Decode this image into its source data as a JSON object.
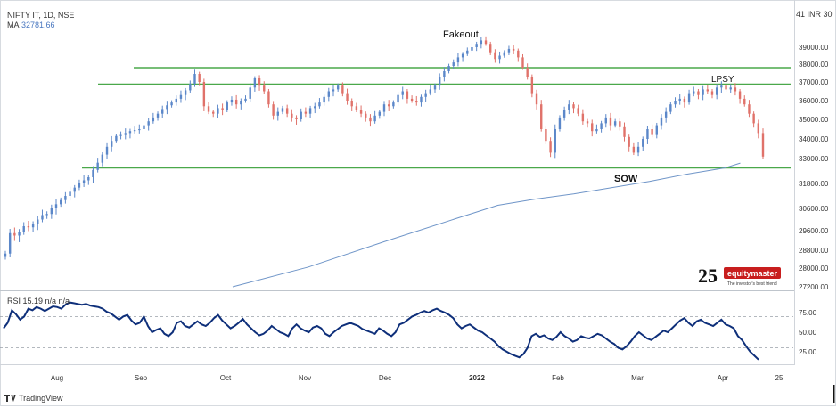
{
  "header": {
    "symbol_line": "NIFTY IT, 1D, NSE",
    "ma_label": "MA",
    "ma_value": "32781.66",
    "currency": "41 INR 30"
  },
  "annotations": {
    "fakeout": "Fakeout",
    "lpsy": "LPSY",
    "sow": "SOW"
  },
  "brand": {
    "years": "25",
    "name": "equitymaster",
    "tagline": "The investor's best friend"
  },
  "footer": {
    "tradingview": "TradingView"
  },
  "colors": {
    "up": "#5b87c9",
    "down": "#e0726a",
    "ma": "#6f95c8",
    "level": "#4aa84a",
    "rsi": "#0e2f7a",
    "brand": "#c81e1e"
  },
  "chart_data": [
    {
      "type": "candlestick",
      "title": "NIFTY IT, 1D, NSE",
      "x_ticks": [
        "Aug",
        "Sep",
        "Oct",
        "Nov",
        "Dec",
        "2022",
        "Feb",
        "Mar",
        "Apr",
        "25"
      ],
      "y_ticks": [
        39000,
        38000,
        37000,
        36000,
        35000,
        34000,
        33000,
        31800,
        30600,
        29600,
        28800,
        28000,
        27200
      ],
      "y_tick_labels": [
        "39000.00",
        "38000.00",
        "37000.00",
        "36000.00",
        "35000.00",
        "34000.00",
        "33000.00",
        "31800.00",
        "30600.00",
        "29600.00",
        "28800.00",
        "28000.00",
        "27200.00"
      ],
      "ylim": [
        27200,
        41000
      ],
      "horizontal_levels": [
        37800,
        36880,
        32550
      ],
      "close": [
        28650,
        29500,
        29400,
        29550,
        29800,
        29750,
        29900,
        30100,
        30300,
        30350,
        30600,
        30800,
        31000,
        31200,
        31400,
        31600,
        31800,
        31950,
        32100,
        32450,
        32800,
        33200,
        33600,
        33900,
        34150,
        34200,
        34300,
        34400,
        34450,
        34500,
        34700,
        34900,
        35100,
        35300,
        35550,
        35750,
        35900,
        36100,
        36300,
        36550,
        36900,
        37450,
        37000,
        35700,
        35400,
        35300,
        35600,
        35500,
        35900,
        36050,
        35800,
        36000,
        36100,
        36700,
        37200,
        36800,
        36500,
        35800,
        35200,
        35400,
        35600,
        35300,
        35100,
        35000,
        35400,
        35300,
        35600,
        35700,
        35900,
        36200,
        36500,
        36600,
        36800,
        36400,
        36000,
        35700,
        35500,
        35300,
        35100,
        34900,
        35200,
        35400,
        35800,
        35700,
        35900,
        36300,
        36500,
        36100,
        36000,
        35900,
        36200,
        36400,
        36600,
        36800,
        37300,
        37600,
        37900,
        38100,
        38400,
        38600,
        38800,
        39000,
        39200,
        39400,
        39200,
        38700,
        38300,
        38500,
        38700,
        38900,
        38800,
        38400,
        37800,
        37300,
        36400,
        35800,
        34500,
        33900,
        33300,
        34500,
        35100,
        35500,
        35800,
        35600,
        35300,
        34900,
        34800,
        34400,
        34500,
        34800,
        35100,
        34700,
        34900,
        34600,
        34100,
        33600,
        33300,
        33600,
        34000,
        34500,
        34200,
        34700,
        35100,
        35400,
        35800,
        36000,
        36100,
        35900,
        36400,
        36500,
        36300,
        36600,
        36500,
        36300,
        36700,
        36800,
        36600,
        36700,
        36500,
        36100,
        35800,
        35300,
        34800,
        34300,
        33100
      ],
      "ma": [
        {
          "x": 0.3,
          "y": 27200
        },
        {
          "x": 0.4,
          "y": 28050
        },
        {
          "x": 0.5,
          "y": 29150
        },
        {
          "x": 0.6,
          "y": 30200
        },
        {
          "x": 0.65,
          "y": 30750
        },
        {
          "x": 0.7,
          "y": 31050
        },
        {
          "x": 0.75,
          "y": 31300
        },
        {
          "x": 0.8,
          "y": 31600
        },
        {
          "x": 0.85,
          "y": 31900
        },
        {
          "x": 0.9,
          "y": 32250
        },
        {
          "x": 0.95,
          "y": 32550
        },
        {
          "x": 0.97,
          "y": 32780
        }
      ]
    },
    {
      "type": "line",
      "title": "RSI",
      "values_label": "RSI 15.19 n/a n/a",
      "y_ticks": [
        75,
        50,
        25
      ],
      "y_tick_labels": [
        "75.00",
        "50.00",
        "25.00"
      ],
      "ylim": [
        5,
        100
      ],
      "guides": [
        70,
        30
      ],
      "values": [
        55,
        62,
        78,
        73,
        66,
        70,
        80,
        78,
        82,
        80,
        77,
        80,
        83,
        82,
        80,
        85,
        88,
        87,
        86,
        85,
        86,
        84,
        83,
        82,
        80,
        76,
        74,
        70,
        66,
        70,
        72,
        65,
        60,
        62,
        70,
        58,
        50,
        53,
        55,
        48,
        45,
        50,
        62,
        64,
        58,
        56,
        60,
        64,
        60,
        58,
        62,
        68,
        72,
        65,
        60,
        55,
        58,
        62,
        67,
        60,
        55,
        50,
        46,
        48,
        52,
        58,
        54,
        50,
        48,
        45,
        55,
        60,
        55,
        52,
        50,
        56,
        58,
        55,
        48,
        45,
        50,
        54,
        58,
        60,
        62,
        60,
        58,
        54,
        52,
        50,
        48,
        55,
        52,
        48,
        45,
        50,
        60,
        62,
        66,
        70,
        72,
        75,
        77,
        75,
        78,
        80,
        77,
        75,
        72,
        68,
        60,
        55,
        58,
        60,
        56,
        52,
        50,
        46,
        42,
        38,
        32,
        28,
        25,
        22,
        20,
        18,
        22,
        30,
        45,
        48,
        44,
        46,
        42,
        40,
        44,
        50,
        45,
        42,
        38,
        40,
        45,
        43,
        42,
        45,
        48,
        46,
        42,
        38,
        35,
        30,
        28,
        32,
        38,
        45,
        50,
        46,
        42,
        40,
        44,
        48,
        52,
        50,
        55,
        60,
        65,
        68,
        62,
        58,
        64,
        66,
        62,
        60,
        58,
        62,
        66,
        60,
        58,
        55,
        45,
        40,
        32,
        25,
        20,
        15
      ]
    }
  ]
}
